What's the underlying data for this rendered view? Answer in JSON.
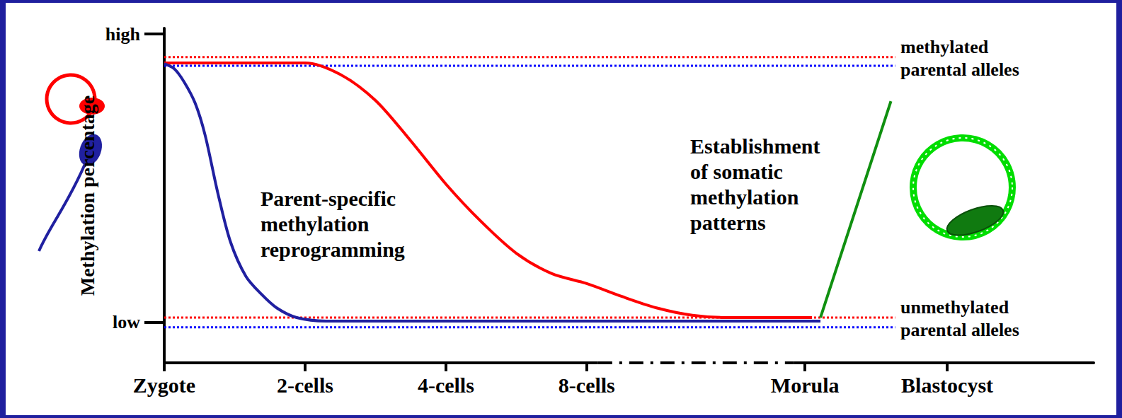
{
  "chart_data": {
    "type": "line",
    "ylabel": "Methylation percentage",
    "xlim": [
      0,
      6.6
    ],
    "ylim": [
      -14,
      102
    ],
    "xticks": [
      {
        "value": 0,
        "label": "Zygote"
      },
      {
        "value": 1,
        "label": "2-cells"
      },
      {
        "value": 2,
        "label": "4-cells"
      },
      {
        "value": 3,
        "label": "8-cells"
      },
      {
        "value": 4.55,
        "label": "Morula"
      },
      {
        "value": 5.56,
        "label": "Blastocyst"
      }
    ],
    "yticks": [
      {
        "value": 0,
        "label": "low"
      },
      {
        "value": 100,
        "label": "high"
      }
    ],
    "grid": false,
    "series": [
      {
        "color": "#ff0000",
        "line_style": "dotted",
        "marker": "none",
        "x": [
          0,
          5.19
        ],
        "values": [
          92,
          92
        ]
      },
      {
        "color": "#0000ff",
        "line_style": "dotted",
        "marker": "none",
        "x": [
          0,
          5.19
        ],
        "values": [
          89,
          89
        ]
      },
      {
        "color": "#ff0000",
        "line_style": "dotted",
        "marker": "none",
        "x": [
          0,
          5.19
        ],
        "values": [
          1.7,
          1.7
        ]
      },
      {
        "color": "#0000ff",
        "line_style": "dotted",
        "marker": "none",
        "x": [
          0,
          5.19
        ],
        "values": [
          -1.7,
          -1.7
        ]
      },
      {
        "color": "#ff0000",
        "line_style": "solid",
        "marker": "none",
        "x": [
          0,
          0.5,
          1,
          1.25,
          1.5,
          1.75,
          2,
          2.25,
          2.5,
          2.75,
          3,
          3.25,
          3.5,
          3.75,
          4,
          4.3,
          4.6
        ],
        "values": [
          90,
          90,
          90,
          86,
          77,
          63,
          48,
          35,
          24,
          17,
          13.5,
          9,
          5,
          2.5,
          1.7,
          1.7,
          1.7
        ]
      },
      {
        "color": "#2020a0",
        "line_style": "solid",
        "marker": "none",
        "x": [
          0,
          0.07,
          0.14,
          0.22,
          0.29,
          0.38,
          0.47,
          0.58,
          0.69,
          0.8,
          0.94,
          1.15,
          2,
          3,
          4,
          4.66
        ],
        "values": [
          89.7,
          88,
          83.5,
          76,
          65,
          45,
          28,
          16,
          9.8,
          5,
          1.7,
          0.5,
          0.5,
          0.5,
          0.5,
          0.5
        ]
      },
      {
        "color": "#109010",
        "line_style": "solid",
        "marker": "none",
        "x": [
          4.66,
          5.16
        ],
        "values": [
          1.7,
          76.7
        ]
      }
    ],
    "annotations": [
      "Parent-specific\nmethylation\nreprogramming",
      "Establishment\nof somatic\nmethylation\npatterns",
      "methylated\nparental alleles",
      "unmethylated\nparental alleles"
    ]
  }
}
